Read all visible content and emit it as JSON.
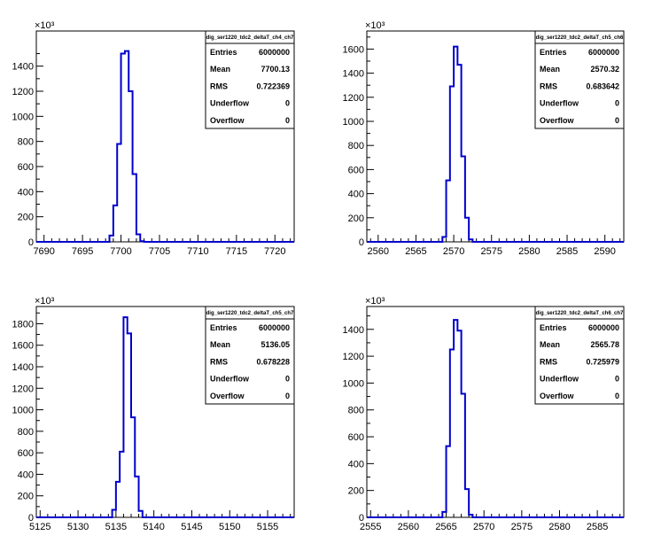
{
  "chart_data": [
    {
      "type": "bar",
      "title": "",
      "multiplier": "×10³",
      "xlim": [
        7689,
        7722.5
      ],
      "ylim": [
        0,
        1680
      ],
      "xticks": [
        7690,
        7695,
        7700,
        7705,
        7710,
        7715,
        7720
      ],
      "yticks": [
        0,
        200,
        400,
        600,
        800,
        1000,
        1200,
        1400
      ],
      "bin_width": 0.5,
      "bins_start": 7698,
      "values": [
        0,
        50,
        290,
        780,
        1500,
        1520,
        1200,
        540,
        60,
        5,
        0
      ],
      "stats": {
        "name": "dig_ser1220_tdc2_deltaT_ch4_ch7",
        "rows": [
          {
            "label": "Entries",
            "value": "6000000"
          },
          {
            "label": "Mean",
            "value": "7700.13"
          },
          {
            "label": "RMS",
            "value": "0.722369"
          },
          {
            "label": "Underflow",
            "value": "0"
          },
          {
            "label": "Overflow",
            "value": "0"
          }
        ]
      }
    },
    {
      "type": "bar",
      "title": "",
      "multiplier": "×10³",
      "xlim": [
        2558.5,
        2592.5
      ],
      "ylim": [
        0,
        1750
      ],
      "xticks": [
        2560,
        2565,
        2570,
        2575,
        2580,
        2585,
        2590
      ],
      "yticks": [
        0,
        200,
        400,
        600,
        800,
        1000,
        1200,
        1400,
        1600
      ],
      "bin_width": 0.5,
      "bins_start": 2568,
      "values": [
        0,
        40,
        510,
        1290,
        1620,
        1470,
        710,
        200,
        20,
        0
      ],
      "stats": {
        "name": "dig_ser1220_tdc2_deltaT_ch5_ch6",
        "rows": [
          {
            "label": "Entries",
            "value": "6000000"
          },
          {
            "label": "Mean",
            "value": "2570.32"
          },
          {
            "label": "RMS",
            "value": "0.683642"
          },
          {
            "label": "Underflow",
            "value": "0"
          },
          {
            "label": "Overflow",
            "value": "0"
          }
        ]
      }
    },
    {
      "type": "bar",
      "title": "",
      "multiplier": "×10³",
      "xlim": [
        5124.5,
        5158.5
      ],
      "ylim": [
        0,
        1960
      ],
      "xticks": [
        5125,
        5130,
        5135,
        5140,
        5145,
        5150,
        5155
      ],
      "yticks": [
        0,
        200,
        400,
        600,
        800,
        1000,
        1200,
        1400,
        1600,
        1800
      ],
      "bin_width": 0.5,
      "bins_start": 5134,
      "values": [
        0,
        70,
        330,
        610,
        1860,
        1710,
        930,
        380,
        60,
        0
      ],
      "stats": {
        "name": "dig_ser1220_tdc2_deltaT_ch5_ch7",
        "rows": [
          {
            "label": "Entries",
            "value": "6000000"
          },
          {
            "label": "Mean",
            "value": "5136.05"
          },
          {
            "label": "RMS",
            "value": "0.678228"
          },
          {
            "label": "Underflow",
            "value": "0"
          },
          {
            "label": "Overflow",
            "value": "0"
          }
        ]
      }
    },
    {
      "type": "bar",
      "title": "",
      "multiplier": "×10³",
      "xlim": [
        2554.5,
        2588.5
      ],
      "ylim": [
        0,
        1570
      ],
      "xticks": [
        2555,
        2560,
        2565,
        2570,
        2575,
        2580,
        2585
      ],
      "yticks": [
        0,
        200,
        400,
        600,
        800,
        1000,
        1200,
        1400
      ],
      "bin_width": 0.5,
      "bins_start": 2564,
      "values": [
        0,
        40,
        530,
        1250,
        1470,
        1390,
        920,
        210,
        20,
        0
      ],
      "stats": {
        "name": "dig_ser1220_tdc2_deltaT_ch6_ch7",
        "rows": [
          {
            "label": "Entries",
            "value": "6000000"
          },
          {
            "label": "Mean",
            "value": "2565.78"
          },
          {
            "label": "RMS",
            "value": "0.725979"
          },
          {
            "label": "Underflow",
            "value": "0"
          },
          {
            "label": "Overflow",
            "value": "0"
          }
        ]
      }
    }
  ]
}
